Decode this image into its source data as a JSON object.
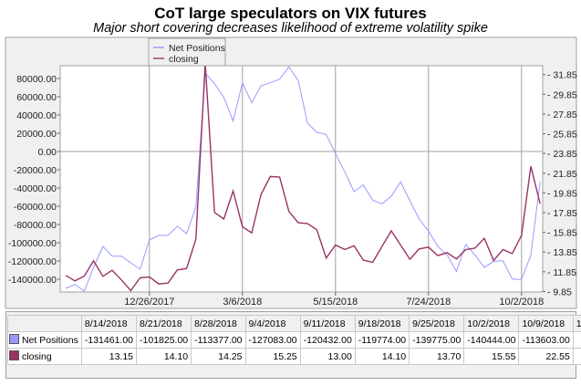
{
  "chart_data": {
    "type": "line",
    "title": "CoT large speculators on VIX futures",
    "subtitle": "Major short covering decreases likelihood of extreme volatility spike",
    "x": [
      "10/24/2017",
      "10/31/2017",
      "11/7/2017",
      "11/14/2017",
      "11/21/2017",
      "11/28/2017",
      "12/5/2017",
      "12/12/2017",
      "12/19/2017",
      "12/26/2017",
      "1/2/2018",
      "1/9/2018",
      "1/16/2018",
      "1/23/2018",
      "1/30/2018",
      "2/6/2018",
      "2/13/2018",
      "2/20/2018",
      "2/27/2018",
      "3/6/2018",
      "3/13/2018",
      "3/20/2018",
      "3/27/2018",
      "4/3/2018",
      "4/10/2018",
      "4/17/2018",
      "4/24/2018",
      "5/1/2018",
      "5/8/2018",
      "5/15/2018",
      "5/22/2018",
      "5/29/2018",
      "6/5/2018",
      "6/12/2018",
      "6/19/2018",
      "6/26/2018",
      "7/3/2018",
      "7/10/2018",
      "7/17/2018",
      "7/24/2018",
      "7/31/2018",
      "8/7/2018",
      "8/14/2018",
      "8/21/2018",
      "8/28/2018",
      "9/4/2018",
      "9/11/2018",
      "9/18/2018",
      "9/25/2018",
      "10/2/2018",
      "10/9/2018",
      "10/16/2018"
    ],
    "x_ticks": [
      "12/26/2017",
      "3/6/2018",
      "5/15/2018",
      "7/24/2018",
      "10/2/2018"
    ],
    "series": [
      {
        "name": "Net Positions",
        "axis": "left",
        "color": "#9999ff",
        "values": [
          -150000,
          -145700,
          -153000,
          -127000,
          -104000,
          -114700,
          -114700,
          -122000,
          -129000,
          -97000,
          -92000,
          -92000,
          -82000,
          -90000,
          -60700,
          86000,
          74300,
          59300,
          33300,
          75300,
          53300,
          72000,
          75300,
          79300,
          92700,
          77700,
          31000,
          21000,
          18700,
          -2300,
          -22300,
          -44000,
          -36700,
          -53300,
          -57300,
          -49000,
          -33300,
          -54000,
          -74000,
          -87300,
          -104000,
          -113300,
          -131461,
          -101825,
          -113377,
          -127083,
          -120432,
          -119774,
          -139775,
          -140444,
          -113603,
          -33037
        ]
      },
      {
        "name": "closing",
        "axis": "right",
        "color": "#993366",
        "values": [
          11.48,
          10.93,
          11.42,
          12.96,
          11.39,
          12.0,
          11.02,
          9.94,
          11.24,
          11.33,
          10.62,
          10.71,
          12.04,
          12.19,
          15.18,
          33.0,
          17.87,
          17.2,
          20.04,
          16.43,
          15.8,
          19.7,
          21.52,
          21.45,
          17.96,
          16.82,
          16.73,
          16.11,
          13.24,
          14.57,
          14.11,
          14.48,
          13.03,
          12.81,
          14.42,
          16.0,
          14.57,
          13.12,
          14.17,
          14.35,
          13.49,
          13.79,
          13.15,
          14.1,
          14.25,
          15.25,
          13.0,
          14.1,
          13.7,
          15.55,
          22.55,
          18.75
        ]
      }
    ],
    "left_axis": {
      "ticks": [
        "80000.00",
        "60000.00",
        "40000.00",
        "20000.00",
        "0.00",
        "-20000.00",
        "-40000.00",
        "-60000.00",
        "-80000.00",
        "-100000.00",
        "-120000.00",
        "-140000.00"
      ],
      "ylim": [
        -154000,
        94000
      ]
    },
    "right_axis": {
      "ticks": [
        "31.85",
        "29.85",
        "27.85",
        "25.85",
        "23.85",
        "21.85",
        "19.85",
        "17.85",
        "15.85",
        "13.85",
        "11.85",
        "9.85"
      ],
      "ylim": [
        9.8,
        32.75
      ]
    },
    "legend": [
      "Net Positions",
      "closing"
    ],
    "legend_position": "top-left",
    "grid": true
  },
  "table": {
    "headers": [
      "8/14/2018",
      "8/21/2018",
      "8/28/2018",
      "9/4/2018",
      "9/11/2018",
      "9/18/2018",
      "9/25/2018",
      "10/2/2018",
      "10/9/2018",
      "10/16/2018"
    ],
    "rows": [
      {
        "label": "Net Positions",
        "color": "#9999ff",
        "cells": [
          "-131461.00",
          "-101825.00",
          "-113377.00",
          "-127083.00",
          "-120432.00",
          "-119774.00",
          "-139775.00",
          "-140444.00",
          "-113603.00",
          "-33037.00"
        ]
      },
      {
        "label": "closing",
        "color": "#993366",
        "cells": [
          "13.15",
          "14.10",
          "14.25",
          "15.25",
          "13.00",
          "14.10",
          "13.70",
          "15.55",
          "22.55",
          "18.75"
        ]
      }
    ]
  }
}
